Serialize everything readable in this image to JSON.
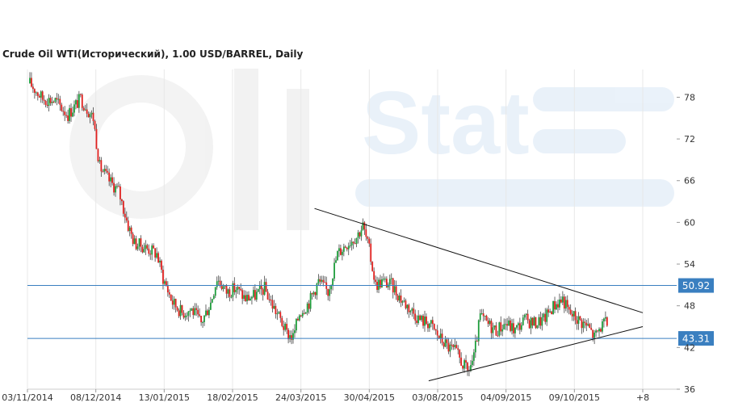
{
  "chart_data": {
    "type": "candlestick",
    "title": "Crude Oil WTI(Исторический), 1.00 USD/BARREL, Daily",
    "watermark": "OilStat",
    "ylim": [
      36,
      82
    ],
    "y_ticks": [
      78,
      72,
      66,
      60,
      54,
      48,
      42,
      36
    ],
    "x_ticks": [
      "03/11/2014",
      "08/12/2014",
      "13/01/2015",
      "18/02/2015",
      "24/03/2015",
      "30/04/2015",
      "03/08/2015",
      "04/09/2015",
      "09/10/2015",
      "+8"
    ],
    "grid": "vertical",
    "colors": {
      "up": "#1e9e3c",
      "down": "#e0201e",
      "level": "#3a7fc0",
      "level_label_bg": "#3a7fc0",
      "trendline": "#111111",
      "grid": "#e8e8e8"
    },
    "price_path": [
      [
        0,
        80.0
      ],
      [
        8,
        77.8
      ],
      [
        16,
        77.5
      ],
      [
        24,
        75.5
      ],
      [
        32,
        77.8
      ],
      [
        40,
        75.0
      ],
      [
        44,
        68.0
      ],
      [
        50,
        66.0
      ],
      [
        56,
        64.5
      ],
      [
        62,
        59.5
      ],
      [
        66,
        57.0
      ],
      [
        72,
        56.5
      ],
      [
        80,
        55.5
      ],
      [
        84,
        52.0
      ],
      [
        90,
        48.5
      ],
      [
        96,
        47.0
      ],
      [
        102,
        47.5
      ],
      [
        108,
        45.5
      ],
      [
        114,
        48.5
      ],
      [
        118,
        52.0
      ],
      [
        124,
        50.0
      ],
      [
        130,
        50.5
      ],
      [
        136,
        49.0
      ],
      [
        142,
        49.5
      ],
      [
        148,
        50.5
      ],
      [
        152,
        48.5
      ],
      [
        158,
        46.0
      ],
      [
        162,
        44.0
      ],
      [
        166,
        43.5
      ],
      [
        170,
        47.0
      ],
      [
        176,
        48.5
      ],
      [
        182,
        51.5
      ],
      [
        188,
        50.0
      ],
      [
        194,
        55.5
      ],
      [
        200,
        57.0
      ],
      [
        206,
        58.0
      ],
      [
        210,
        59.5
      ],
      [
        214,
        56.0
      ],
      [
        218,
        51.0
      ],
      [
        222,
        51.5
      ],
      [
        228,
        51.0
      ],
      [
        234,
        49.0
      ],
      [
        240,
        47.5
      ],
      [
        246,
        46.0
      ],
      [
        252,
        45.5
      ],
      [
        258,
        43.5
      ],
      [
        264,
        42.0
      ],
      [
        268,
        41.5
      ],
      [
        272,
        40.0
      ],
      [
        276,
        38.5
      ],
      [
        280,
        40.5
      ],
      [
        284,
        46.5
      ],
      [
        288,
        45.5
      ],
      [
        294,
        44.5
      ],
      [
        300,
        45.5
      ],
      [
        306,
        44.5
      ],
      [
        312,
        46.0
      ],
      [
        318,
        45.5
      ],
      [
        324,
        46.0
      ],
      [
        330,
        48.0
      ],
      [
        336,
        49.0
      ],
      [
        340,
        47.0
      ],
      [
        346,
        46.0
      ],
      [
        352,
        45.0
      ],
      [
        356,
        43.5
      ],
      [
        360,
        45.0
      ],
      [
        364,
        45.5
      ]
    ],
    "levels": [
      {
        "value": 50.92,
        "label": "50.92"
      },
      {
        "value": 43.31,
        "label": "43.31"
      }
    ],
    "trendlines": [
      {
        "name": "upper",
        "from": [
          180,
          62.0
        ],
        "to": [
          387,
          47.0
        ]
      },
      {
        "name": "lower",
        "from": [
          252,
          37.2
        ],
        "to": [
          387,
          45.0
        ]
      }
    ]
  }
}
